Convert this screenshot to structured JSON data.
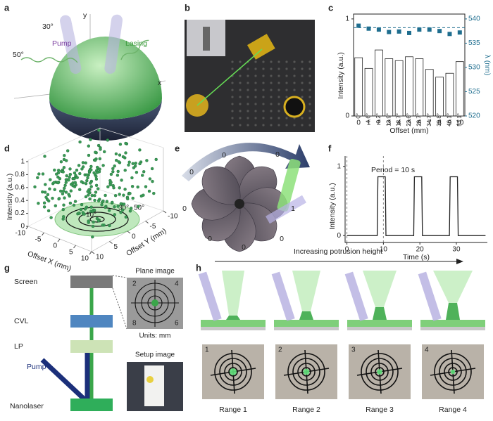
{
  "panel_labels": [
    "a",
    "b",
    "c",
    "d",
    "e",
    "f",
    "g",
    "h"
  ],
  "a": {
    "axis_y": "y",
    "axis_x": "x",
    "angle1": "30°",
    "angle2": "50°",
    "pump": "Pump",
    "lasing": "Lasing"
  },
  "d": {
    "zlabel": "Intensity (a.u.)",
    "xlabel": "Offset X (mm)",
    "ylabel": "Offset Y (mm)",
    "zticks": [
      0,
      0.2,
      0.4,
      0.6,
      0.8,
      1
    ],
    "xticks": [
      -10,
      -5,
      0,
      5,
      10
    ],
    "yticks": [
      -10,
      -5,
      0,
      5,
      10
    ],
    "angles": [
      "10°",
      "30°",
      "50°"
    ]
  },
  "e": {
    "segment_values": [
      0,
      0,
      0,
      0,
      1,
      0,
      0,
      0
    ]
  },
  "g": {
    "screen": "Screen",
    "cvl": "CVL",
    "lp": "LP",
    "pump": "Pump",
    "nanolaser": "Nanolaser",
    "plane_image": "Plane image",
    "units": "Units: mm",
    "setup_image": "Setup image",
    "corners": [
      2,
      4,
      8,
      6
    ]
  },
  "h": {
    "arrow_label": "Increasing potrusion height",
    "photo_numbers": [
      1,
      2,
      3,
      4
    ],
    "ranges": [
      "Range 1",
      "Range 2",
      "Range 3",
      "Range 4"
    ]
  },
  "chart_data": [
    {
      "type": "bar",
      "xlabel": "Offset (mm)",
      "ylabel": "Intensity (a.u.)",
      "y2label": "λ (nm)",
      "categories": [
        0,
        1,
        2,
        3,
        4,
        5,
        6,
        7,
        8,
        9,
        10
      ],
      "series": [
        {
          "color": "#ffffff",
          "values": [
            0.6,
            0.49,
            0.68,
            0.59,
            0.57,
            0.61,
            0.59,
            0.48,
            0.4,
            0.44,
            0.56
          ],
          "value_labels": [
            "0°",
            "4.6°",
            "9.2°",
            "13.9°",
            "18.7°",
            "23.6°",
            "28.7°",
            "34.7°",
            "39.8°",
            "46.1°",
            "53.1°"
          ]
        },
        {
          "axis": "y2",
          "color": "#1f6e8f",
          "values": [
            538.6,
            538,
            537.8,
            537.3,
            537.4,
            537.1,
            537.8,
            537.8,
            537.5,
            536.9,
            537.2
          ]
        }
      ],
      "reference_line": {
        "value": 538.2,
        "axis": "y2"
      },
      "ylim": [
        0,
        1.05
      ],
      "yticks": [
        0,
        1
      ],
      "y2lim": [
        520,
        541
      ],
      "y2ticks": [
        520,
        525,
        530,
        535,
        540
      ]
    },
    {
      "type": "line",
      "xlabel": "Time (s)",
      "ylabel": "Intensity (a.u.)",
      "annotation": "Period = 10 s",
      "x": [
        0,
        8.3,
        8.5,
        10.5,
        10.7,
        18.3,
        18.5,
        20.5,
        20.7,
        28.1,
        28.3,
        30.3,
        30.5,
        38
      ],
      "values": [
        0,
        0,
        0.85,
        0.85,
        0,
        0,
        0.85,
        0.85,
        0,
        0,
        0.85,
        0.85,
        0,
        0
      ],
      "color": "#222222",
      "xlim": [
        -0.5,
        38.5
      ],
      "ylim": [
        -0.1,
        1.15
      ],
      "xticks": [
        0,
        10,
        20,
        30
      ],
      "yticks": [
        0,
        1
      ],
      "vlines": [
        0,
        10
      ]
    }
  ]
}
